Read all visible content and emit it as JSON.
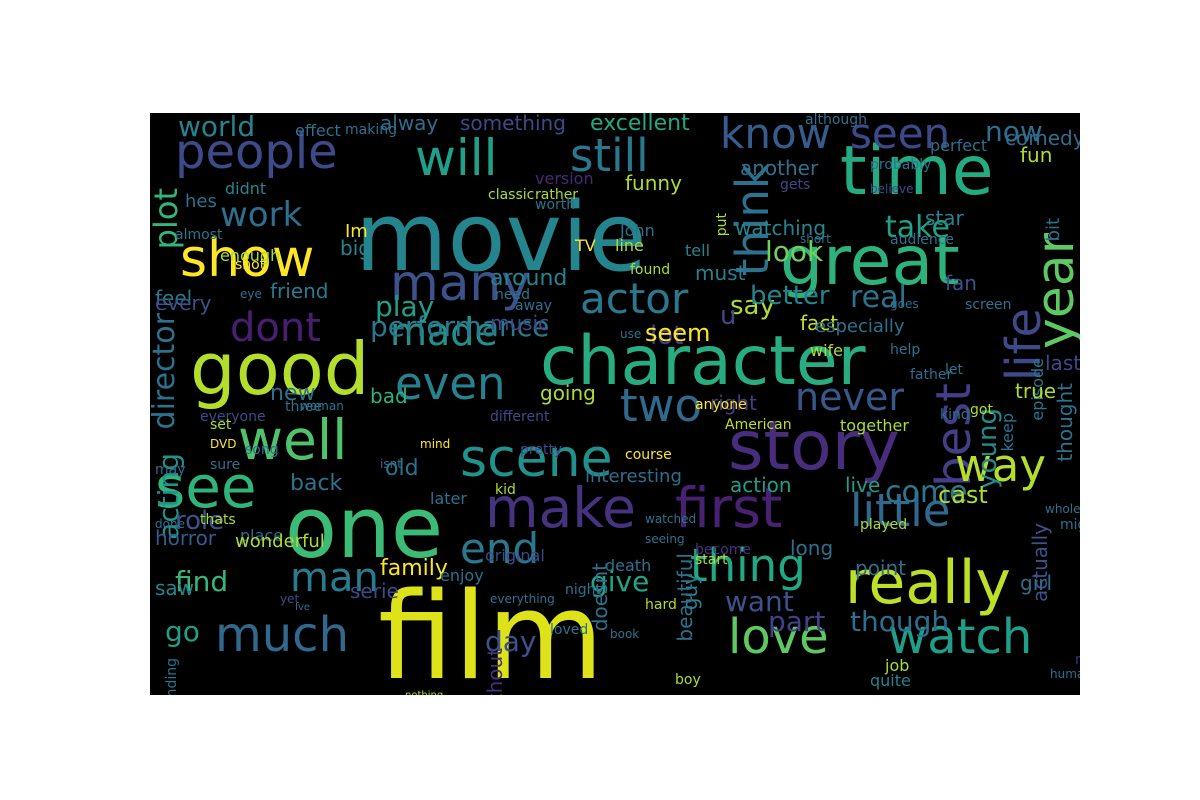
{
  "words": [
    {
      "t": "film",
      "c": "#dde318"
    },
    {
      "t": "movie",
      "c": "#25858e"
    },
    {
      "t": "one",
      "c": "#3bbb75"
    },
    {
      "t": "character",
      "c": "#27ad81"
    },
    {
      "t": "good",
      "c": "#b4de2c"
    },
    {
      "t": "time",
      "c": "#25ab82"
    },
    {
      "t": "story",
      "c": "#472d7b"
    },
    {
      "t": "great",
      "c": "#2db27d"
    },
    {
      "t": "really",
      "c": "#bddf26"
    },
    {
      "t": "make",
      "c": "#46327e"
    },
    {
      "t": "first",
      "c": "#482173"
    },
    {
      "t": "well",
      "c": "#4ec36b"
    },
    {
      "t": "see",
      "c": "#2fb47c"
    },
    {
      "t": "scene",
      "c": "#21918c"
    },
    {
      "t": "show",
      "c": "#fde725"
    },
    {
      "t": "will",
      "c": "#1fa088"
    },
    {
      "t": "people",
      "c": "#3e4a89"
    },
    {
      "t": "love",
      "c": "#5ec962"
    },
    {
      "t": "watch",
      "c": "#1f9e89"
    },
    {
      "t": "much",
      "c": "#31688e"
    },
    {
      "t": "many",
      "c": "#3b528b"
    },
    {
      "t": "even",
      "c": "#26828e"
    },
    {
      "t": "still",
      "c": "#2a788e"
    },
    {
      "t": "life",
      "c": "#3e4989"
    },
    {
      "t": "year",
      "c": "#5ec962"
    },
    {
      "t": "think",
      "c": "#2c728e"
    },
    {
      "t": "best",
      "c": "#433e85"
    },
    {
      "t": "thing",
      "c": "#22a884"
    },
    {
      "t": "little",
      "c": "#31688e"
    },
    {
      "t": "way",
      "c": "#b5de2b"
    },
    {
      "t": "two",
      "c": "#31688e"
    },
    {
      "t": "know",
      "c": "#365c8d"
    },
    {
      "t": "seen",
      "c": "#3e4989"
    },
    {
      "t": "end",
      "c": "#2a788e"
    },
    {
      "t": "man",
      "c": "#287c8e"
    },
    {
      "t": "dont",
      "c": "#481f70"
    },
    {
      "t": "made",
      "c": "#21918c"
    },
    {
      "t": "actor",
      "c": "#2a788e"
    },
    {
      "t": "never",
      "c": "#38588c"
    },
    {
      "t": "work",
      "c": "#2e6e8e"
    },
    {
      "t": "plot",
      "c": "#32b67a"
    },
    {
      "t": "look",
      "c": "#73d056"
    },
    {
      "t": "take",
      "c": "#1fa088"
    },
    {
      "t": "real",
      "c": "#2c728e"
    },
    {
      "t": "performance",
      "c": "#2a788e"
    },
    {
      "t": "come",
      "c": "#2a788e"
    },
    {
      "t": "now",
      "c": "#2e6e8e"
    },
    {
      "t": "world",
      "c": "#26828e"
    },
    {
      "t": "director",
      "c": "#2c728e"
    },
    {
      "t": "say",
      "c": "#addc30"
    },
    {
      "t": "lot",
      "c": "#433e85"
    },
    {
      "t": "play",
      "c": "#1fa088"
    },
    {
      "t": "better",
      "c": "#25858e"
    },
    {
      "t": "u",
      "c": "#3e4989"
    },
    {
      "t": "find",
      "c": "#35b779"
    },
    {
      "t": "go",
      "c": "#1f9e89"
    },
    {
      "t": "part",
      "c": "#424086"
    },
    {
      "t": "though",
      "c": "#2e6e8e"
    },
    {
      "t": "give",
      "c": "#20a386"
    },
    {
      "t": "want",
      "c": "#3b528b"
    },
    {
      "t": "acting",
      "c": "#21918c"
    },
    {
      "t": "role",
      "c": "#3b528b"
    },
    {
      "t": "back",
      "c": "#2c728e"
    },
    {
      "t": "new",
      "c": "#2c728e"
    },
    {
      "t": "seem",
      "c": "#fde725"
    },
    {
      "t": "day",
      "c": "#3b528b"
    },
    {
      "t": "young",
      "c": "#228c8d"
    },
    {
      "t": "cast",
      "c": "#addc30"
    },
    {
      "t": "old",
      "c": "#2c728e"
    },
    {
      "t": "going",
      "c": "#addc30"
    },
    {
      "t": "bad",
      "c": "#2db27d"
    },
    {
      "t": "something",
      "c": "#3e4989"
    },
    {
      "t": "excellent",
      "c": "#22a884"
    },
    {
      "t": "alway",
      "c": "#2e6e8e"
    },
    {
      "t": "comedy",
      "c": "#2e6e8e"
    },
    {
      "t": "fun",
      "c": "#addc30"
    },
    {
      "t": "another",
      "c": "#2c728e"
    },
    {
      "t": "funny",
      "c": "#addc30"
    },
    {
      "t": "watching",
      "c": "#25858e"
    },
    {
      "t": "star",
      "c": "#26828e"
    },
    {
      "t": "bit",
      "c": "#2c728e"
    },
    {
      "t": "feel",
      "c": "#287c8e"
    },
    {
      "t": "every",
      "c": "#3b528b"
    },
    {
      "t": "friend",
      "c": "#287c8e"
    },
    {
      "t": "big",
      "c": "#25858e"
    },
    {
      "t": "must",
      "c": "#26828e"
    },
    {
      "t": "around",
      "c": "#26828e"
    },
    {
      "t": "music",
      "c": "#3e4989"
    },
    {
      "t": "fan",
      "c": "#3b528b"
    },
    {
      "t": "fact",
      "c": "#c2df23"
    },
    {
      "t": "especially",
      "c": "#2c728e"
    },
    {
      "t": "episode",
      "c": "#2a788e"
    },
    {
      "t": "last",
      "c": "#3e4989"
    },
    {
      "t": "thought",
      "c": "#2c728e"
    },
    {
      "t": "true",
      "c": "#addc30"
    },
    {
      "t": "right",
      "c": "#433e85"
    },
    {
      "t": "action",
      "c": "#1f9e89"
    },
    {
      "t": "live",
      "c": "#1f9e89"
    },
    {
      "t": "family",
      "c": "#fde725"
    },
    {
      "t": "horror",
      "c": "#365c8d"
    },
    {
      "t": "place",
      "c": "#2e6e8e"
    },
    {
      "t": "saw",
      "c": "#25858e"
    },
    {
      "t": "serie",
      "c": "#3e4989"
    },
    {
      "t": "long",
      "c": "#2e6e8e"
    },
    {
      "t": "point",
      "c": "#2e6e8e"
    },
    {
      "t": "actually",
      "c": "#3b528b"
    },
    {
      "t": "girl",
      "c": "#2e6e8e"
    },
    {
      "t": "guy",
      "c": "#25858e"
    },
    {
      "t": "quite",
      "c": "#26828e"
    },
    {
      "t": "without",
      "c": "#46327e"
    },
    {
      "t": "doesnt",
      "c": "#2c728e"
    },
    {
      "t": "beautiful",
      "c": "#2c728e"
    },
    {
      "t": "interesting",
      "c": "#2e6e8e"
    },
    {
      "t": "wonderful",
      "c": "#addc30"
    },
    {
      "t": "hes",
      "c": "#2c728e"
    },
    {
      "t": "Im",
      "c": "#fde725"
    },
    {
      "t": "didnt",
      "c": "#25858e"
    },
    {
      "t": "enough",
      "c": "#addc30"
    },
    {
      "t": "almost",
      "c": "#2c728e"
    },
    {
      "t": "John",
      "c": "#2c728e"
    },
    {
      "t": "TV",
      "c": "#fde725"
    },
    {
      "t": "line",
      "c": "#addc30"
    },
    {
      "t": "tell",
      "c": "#26828e"
    },
    {
      "t": "found",
      "c": "#addc30"
    },
    {
      "t": "need",
      "c": "#2c728e"
    },
    {
      "t": "away",
      "c": "#2c728e"
    },
    {
      "t": "version",
      "c": "#482878"
    },
    {
      "t": "rather",
      "c": "#addc30"
    },
    {
      "t": "classic",
      "c": "#addc30"
    },
    {
      "t": "worth",
      "c": "#2c728e"
    },
    {
      "t": "effect",
      "c": "#2c728e"
    },
    {
      "t": "making",
      "c": "#2c728e"
    },
    {
      "t": "put",
      "c": "#addc30"
    },
    {
      "t": "gets",
      "c": "#3e4989"
    },
    {
      "t": "perfect",
      "c": "#2c728e"
    },
    {
      "t": "probably",
      "c": "#2c728e"
    },
    {
      "t": "although",
      "c": "#2c728e"
    },
    {
      "t": "short",
      "c": "#2c728e"
    },
    {
      "t": "audience",
      "c": "#2c728e"
    },
    {
      "t": "believe",
      "c": "#3e4989"
    },
    {
      "t": "screen",
      "c": "#2c728e"
    },
    {
      "t": "goes",
      "c": "#2c728e"
    },
    {
      "t": "wife",
      "c": "#addc30"
    },
    {
      "t": "let",
      "c": "#2c728e"
    },
    {
      "t": "help",
      "c": "#2c728e"
    },
    {
      "t": "father",
      "c": "#2e6e8e"
    },
    {
      "t": "kind",
      "c": "#2c728e"
    },
    {
      "t": "got",
      "c": "#addc30"
    },
    {
      "t": "keep",
      "c": "#2c728e"
    },
    {
      "t": "together",
      "c": "#addc30"
    },
    {
      "t": "American",
      "c": "#c2df23"
    },
    {
      "t": "anyone",
      "c": "#fde725"
    },
    {
      "t": "different",
      "c": "#3e4989"
    },
    {
      "t": "course",
      "c": "#fde725"
    },
    {
      "t": "pretty",
      "c": "#3e4989"
    },
    {
      "t": "shot",
      "c": "#fde725"
    },
    {
      "t": "eye",
      "c": "#2c728e"
    },
    {
      "t": "use",
      "c": "#2c728e"
    },
    {
      "t": "woman",
      "c": "#2c728e"
    },
    {
      "t": "three",
      "c": "#2c728e"
    },
    {
      "t": "everyone",
      "c": "#3e4989"
    },
    {
      "t": "set",
      "c": "#addc30"
    },
    {
      "t": "DVD",
      "c": "#fde725"
    },
    {
      "t": "sure",
      "c": "#2c728e"
    },
    {
      "t": "may",
      "c": "#2e6e8e"
    },
    {
      "t": "song",
      "c": "#2c728e"
    },
    {
      "t": "mind",
      "c": "#fde725"
    },
    {
      "t": "isnt",
      "c": "#2c728e"
    },
    {
      "t": "later",
      "c": "#2c728e"
    },
    {
      "t": "kid",
      "c": "#addc30"
    },
    {
      "t": "thats",
      "c": "#addc30"
    },
    {
      "t": "done",
      "c": "#2c728e"
    },
    {
      "t": "watched",
      "c": "#2c728e"
    },
    {
      "t": "seeing",
      "c": "#2c728e"
    },
    {
      "t": "death",
      "c": "#2c728e"
    },
    {
      "t": "become",
      "c": "#46327e"
    },
    {
      "t": "original",
      "c": "#3e4989"
    },
    {
      "t": "start",
      "c": "#addc30"
    },
    {
      "t": "played",
      "c": "#addc30"
    },
    {
      "t": "whole",
      "c": "#2c728e"
    },
    {
      "t": "might",
      "c": "#2c728e"
    },
    {
      "t": "enjoy",
      "c": "#2c728e"
    },
    {
      "t": "yet",
      "c": "#3e4989"
    },
    {
      "t": "Ive",
      "c": "#2c728e"
    },
    {
      "t": "everything",
      "c": "#2c728e"
    },
    {
      "t": "night",
      "c": "#2c728e"
    },
    {
      "t": "loved",
      "c": "#2c728e"
    },
    {
      "t": "hard",
      "c": "#addc30"
    },
    {
      "t": "book",
      "c": "#2c728e"
    },
    {
      "t": "boy",
      "c": "#addc30"
    },
    {
      "t": "job",
      "c": "#addc30"
    },
    {
      "t": "turn",
      "c": "#2c728e"
    },
    {
      "t": "human",
      "c": "#2c728e"
    },
    {
      "t": "moment",
      "c": "#46327e"
    },
    {
      "t": "ending",
      "c": "#2c728e"
    },
    {
      "t": "nothing",
      "c": "#addc30"
    },
    {
      "t": "cant",
      "c": "#addc30"
    },
    {
      "t": "war",
      "c": "#2c728e"
    },
    {
      "t": "theres",
      "c": "#2c728e"
    }
  ]
}
